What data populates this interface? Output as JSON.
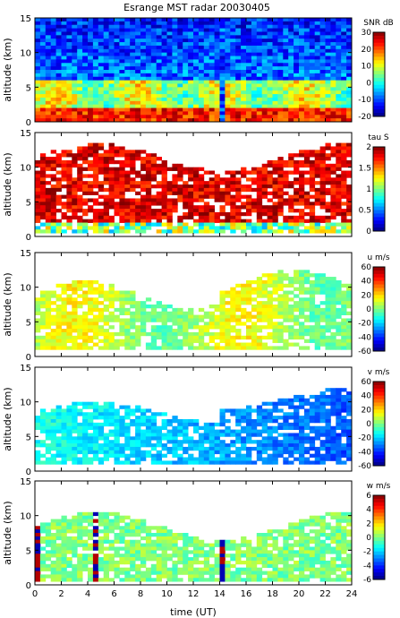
{
  "title": "Esrange MST radar 20030405",
  "xlabel": "time (UT)",
  "x_ticks": [
    "0",
    "2",
    "4",
    "6",
    "8",
    "10",
    "12",
    "14",
    "16",
    "18",
    "20",
    "22",
    "24"
  ],
  "chart_data": [
    {
      "type": "heatmap",
      "ylabel": "altitude (km)",
      "quantity": "SNR",
      "unit_label": "SNR dB",
      "x_range": [
        0,
        24
      ],
      "y_range": [
        0,
        15
      ],
      "y_ticks": [
        0,
        5,
        10,
        15
      ],
      "cbar_range": [
        -20,
        30
      ],
      "cbar_ticks": [
        30,
        20,
        10,
        0,
        -10,
        -20
      ],
      "colormap": "jet"
    },
    {
      "type": "heatmap",
      "ylabel": "altitude (km)",
      "quantity": "tau",
      "unit_label": "tau S",
      "x_range": [
        0,
        24
      ],
      "y_range": [
        0,
        15
      ],
      "y_ticks": [
        0,
        5,
        10,
        15
      ],
      "cbar_range": [
        0,
        2
      ],
      "cbar_ticks": [
        2,
        1.5,
        1,
        0.5,
        0
      ],
      "colormap": "jet"
    },
    {
      "type": "heatmap",
      "ylabel": "altitude (km)",
      "quantity": "u",
      "unit_label": "u m/s",
      "x_range": [
        0,
        24
      ],
      "y_range": [
        0,
        15
      ],
      "y_ticks": [
        0,
        5,
        10,
        15
      ],
      "cbar_range": [
        -60,
        60
      ],
      "cbar_ticks": [
        60,
        40,
        20,
        0,
        -20,
        -40,
        -60
      ],
      "colormap": "jet"
    },
    {
      "type": "heatmap",
      "ylabel": "altitude (km)",
      "quantity": "v",
      "unit_label": "v m/s",
      "x_range": [
        0,
        24
      ],
      "y_range": [
        0,
        15
      ],
      "y_ticks": [
        0,
        5,
        10,
        15
      ],
      "cbar_range": [
        -60,
        60
      ],
      "cbar_ticks": [
        60,
        40,
        20,
        0,
        -20,
        -40,
        -60
      ],
      "colormap": "jet"
    },
    {
      "type": "heatmap",
      "ylabel": "altitude (km)",
      "quantity": "w",
      "unit_label": "w m/s",
      "x_range": [
        0,
        24
      ],
      "y_range": [
        0,
        15
      ],
      "y_ticks": [
        0,
        5,
        10,
        15
      ],
      "cbar_range": [
        -6,
        6
      ],
      "cbar_ticks": [
        6,
        4,
        2,
        0,
        -2,
        -4,
        -6
      ],
      "colormap": "jet"
    }
  ]
}
